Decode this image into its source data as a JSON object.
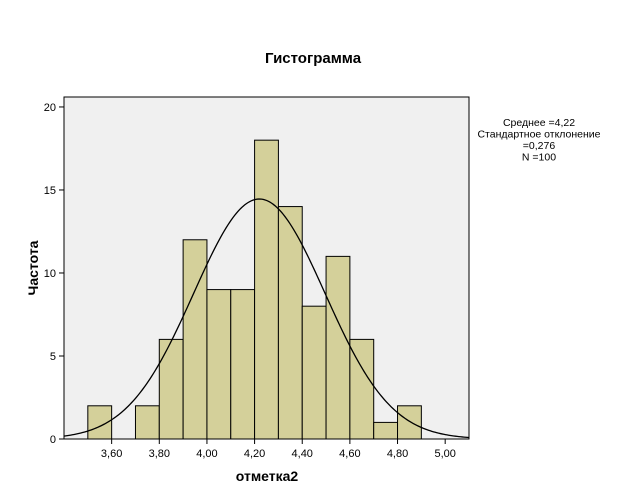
{
  "chart_data": {
    "type": "bar",
    "title": "Гистограмма",
    "xlabel": "отметка2",
    "ylabel": "Частота",
    "xlim": [
      3.4,
      5.1
    ],
    "ylim": [
      0,
      20.6
    ],
    "grid": false,
    "bin_width": 0.1,
    "bars": [
      {
        "x0": 3.5,
        "count": 2
      },
      {
        "x0": 3.7,
        "count": 2
      },
      {
        "x0": 3.8,
        "count": 6
      },
      {
        "x0": 3.9,
        "count": 12
      },
      {
        "x0": 4.0,
        "count": 9
      },
      {
        "x0": 4.1,
        "count": 9
      },
      {
        "x0": 4.2,
        "count": 18
      },
      {
        "x0": 4.3,
        "count": 14
      },
      {
        "x0": 4.4,
        "count": 8
      },
      {
        "x0": 4.5,
        "count": 11
      },
      {
        "x0": 4.6,
        "count": 6
      },
      {
        "x0": 4.7,
        "count": 1
      },
      {
        "x0": 4.8,
        "count": 2
      }
    ],
    "x_ticks": [
      {
        "value": 3.6,
        "label": "3,60"
      },
      {
        "value": 3.8,
        "label": "3,80"
      },
      {
        "value": 4.0,
        "label": "4,00"
      },
      {
        "value": 4.2,
        "label": "4,20"
      },
      {
        "value": 4.4,
        "label": "4,40"
      },
      {
        "value": 4.6,
        "label": "4,60"
      },
      {
        "value": 4.8,
        "label": "4,80"
      },
      {
        "value": 5.0,
        "label": "5,00"
      }
    ],
    "y_ticks": [
      {
        "value": 0,
        "label": "0"
      },
      {
        "value": 5,
        "label": "5"
      },
      {
        "value": 10,
        "label": "10"
      },
      {
        "value": 15,
        "label": "15"
      },
      {
        "value": 20,
        "label": "20"
      }
    ],
    "normal_curve": {
      "mean": 4.22,
      "sd": 0.276,
      "n": 100
    },
    "stats_text": [
      "Среднее =4,22",
      "Стандартное отклонение",
      "=0,276",
      "N =100"
    ],
    "colors": {
      "bar_fill": "#d4d09a",
      "bar_stroke": "#000000",
      "plot_bg": "#f0f0f0",
      "curve": "#000000"
    }
  }
}
